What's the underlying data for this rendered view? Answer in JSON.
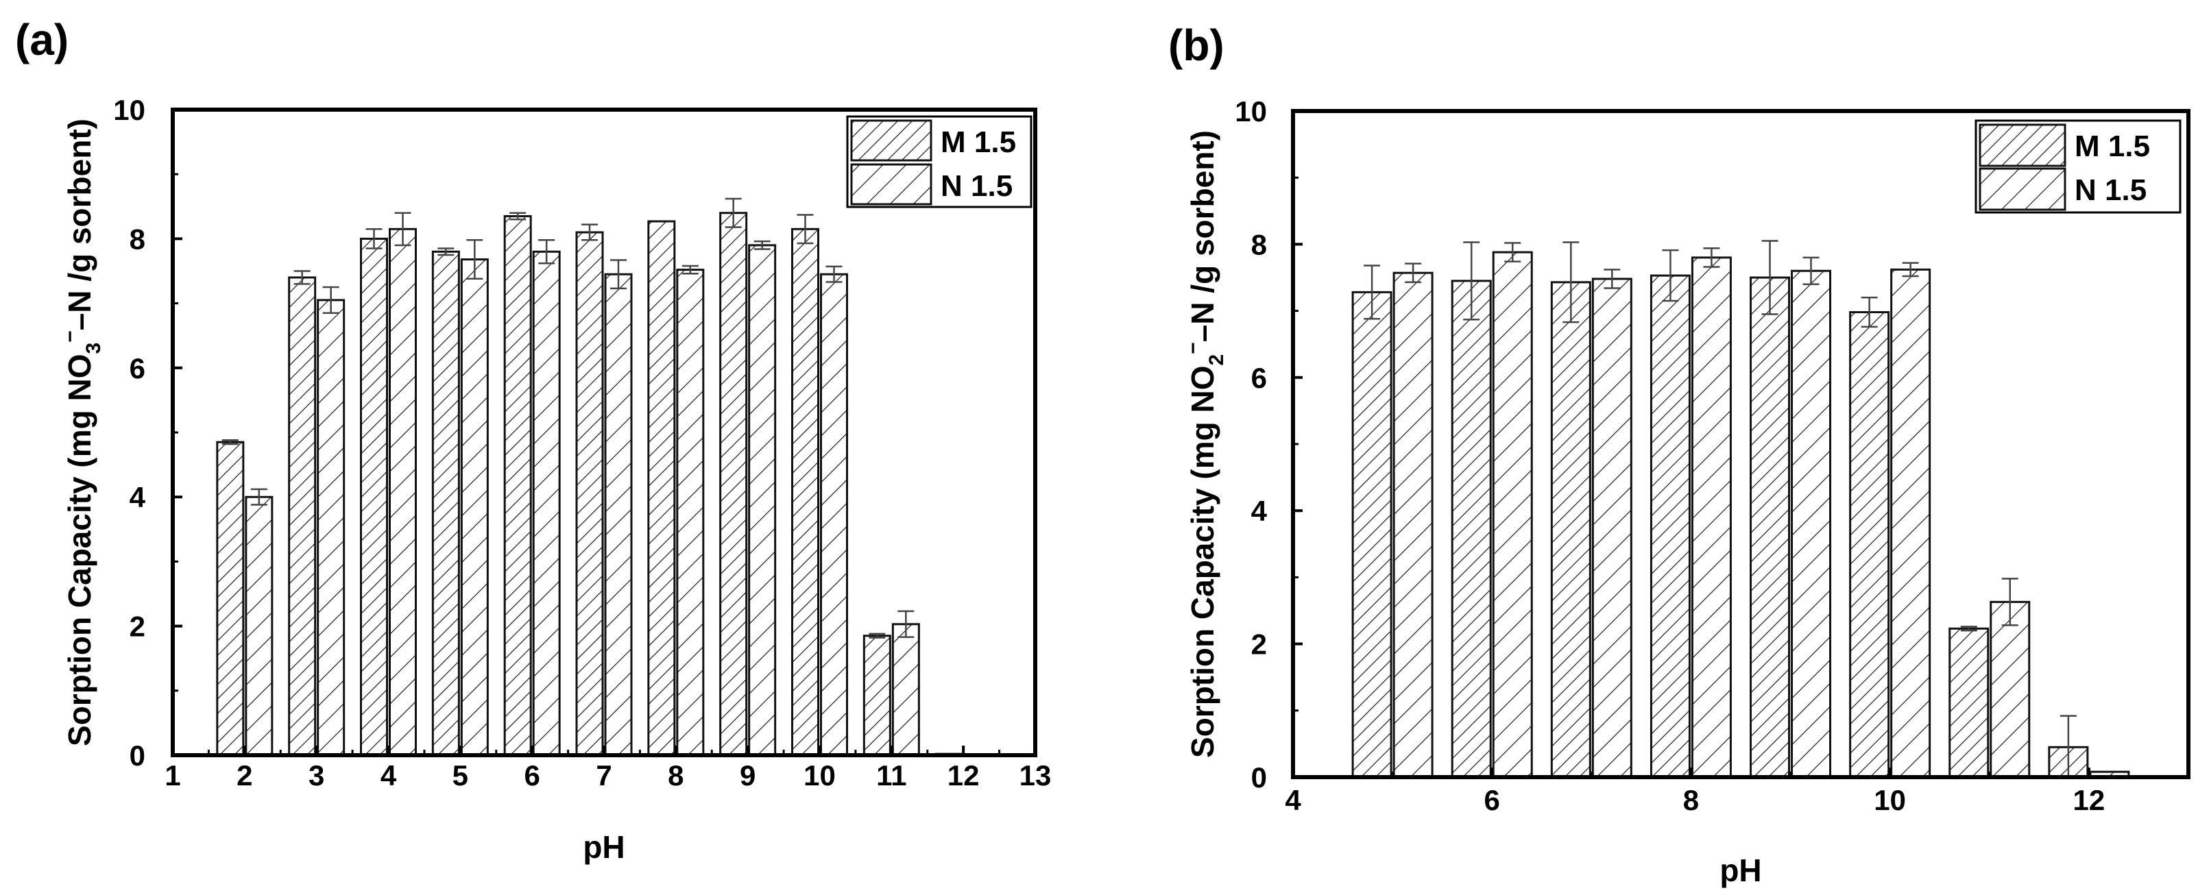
{
  "chart_data": [
    {
      "type": "bar",
      "panel_label": "(a)",
      "title": "",
      "xlabel": "pH",
      "ylabel_parts": [
        "Sorption Capacity (mg NO",
        "3",
        "−",
        "–N /g sorbent)"
      ],
      "xlim": [
        1,
        13
      ],
      "ylim": [
        0,
        10
      ],
      "xticks": [
        1,
        2,
        3,
        4,
        5,
        6,
        7,
        8,
        9,
        10,
        11,
        12,
        13
      ],
      "yticks": [
        0,
        2,
        4,
        6,
        8,
        10
      ],
      "legend_position": "top-right",
      "categories": [
        2,
        3,
        4,
        5,
        6,
        7,
        8,
        9,
        10,
        11,
        12
      ],
      "series": [
        {
          "name": "M 1.5",
          "hatch": "dense",
          "values": [
            4.85,
            7.4,
            8.0,
            7.8,
            8.35,
            8.1,
            8.27,
            8.4,
            8.15,
            1.85,
            0.02
          ],
          "errors": [
            0.03,
            0.1,
            0.15,
            0.05,
            0.05,
            0.12,
            0.0,
            0.22,
            0.22,
            0.03,
            0.0
          ]
        },
        {
          "name": "N 1.5",
          "hatch": "sparse",
          "values": [
            4.0,
            7.05,
            8.15,
            7.68,
            7.8,
            7.45,
            7.52,
            7.9,
            7.45,
            2.03,
            0.0
          ],
          "errors": [
            0.12,
            0.2,
            0.25,
            0.3,
            0.18,
            0.22,
            0.06,
            0.06,
            0.12,
            0.2,
            0.0
          ]
        }
      ]
    },
    {
      "type": "bar",
      "panel_label": "(b)",
      "title": "",
      "xlabel": "pH",
      "ylabel_parts": [
        "Sorption Capacity (mg NO",
        "2",
        "−",
        "–N /g sorbent)"
      ],
      "xlim": [
        4,
        13
      ],
      "ylim": [
        0,
        10
      ],
      "xticks": [
        4,
        6,
        8,
        10,
        12
      ],
      "yticks": [
        0,
        2,
        4,
        6,
        8,
        10
      ],
      "legend_position": "top-right",
      "categories": [
        5,
        6,
        7,
        8,
        9,
        10,
        11,
        12
      ],
      "series": [
        {
          "name": "M 1.5",
          "hatch": "dense",
          "values": [
            7.28,
            7.45,
            7.43,
            7.53,
            7.5,
            6.98,
            2.23,
            0.45
          ],
          "errors": [
            0.4,
            0.58,
            0.6,
            0.38,
            0.55,
            0.22,
            0.03,
            0.47
          ]
        },
        {
          "name": "N 1.5",
          "hatch": "sparse",
          "values": [
            7.57,
            7.88,
            7.48,
            7.8,
            7.6,
            7.62,
            2.63,
            0.08
          ],
          "errors": [
            0.14,
            0.14,
            0.14,
            0.14,
            0.2,
            0.1,
            0.35,
            0.0
          ]
        }
      ]
    }
  ]
}
